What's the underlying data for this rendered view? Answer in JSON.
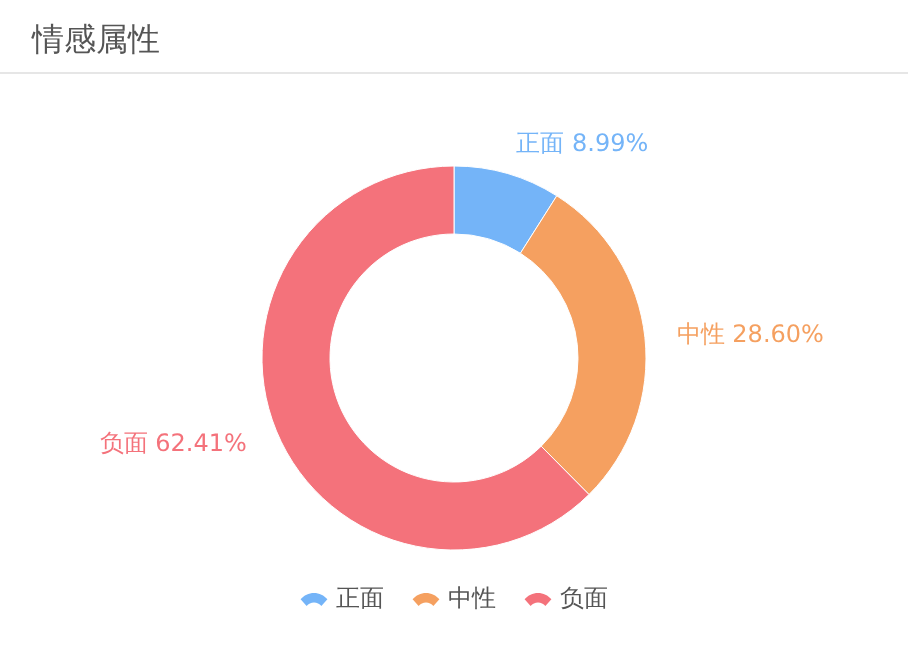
{
  "chart_data": {
    "type": "donut",
    "title": "情感属性",
    "categories": [
      "正面",
      "中性",
      "负面"
    ],
    "values": [
      8.99,
      28.6,
      62.41
    ],
    "value_labels": [
      "8.99%",
      "28.60%",
      "62.41%"
    ],
    "colors": [
      "#74b4f8",
      "#f5a060",
      "#f4727b"
    ],
    "legend": "bottom"
  }
}
